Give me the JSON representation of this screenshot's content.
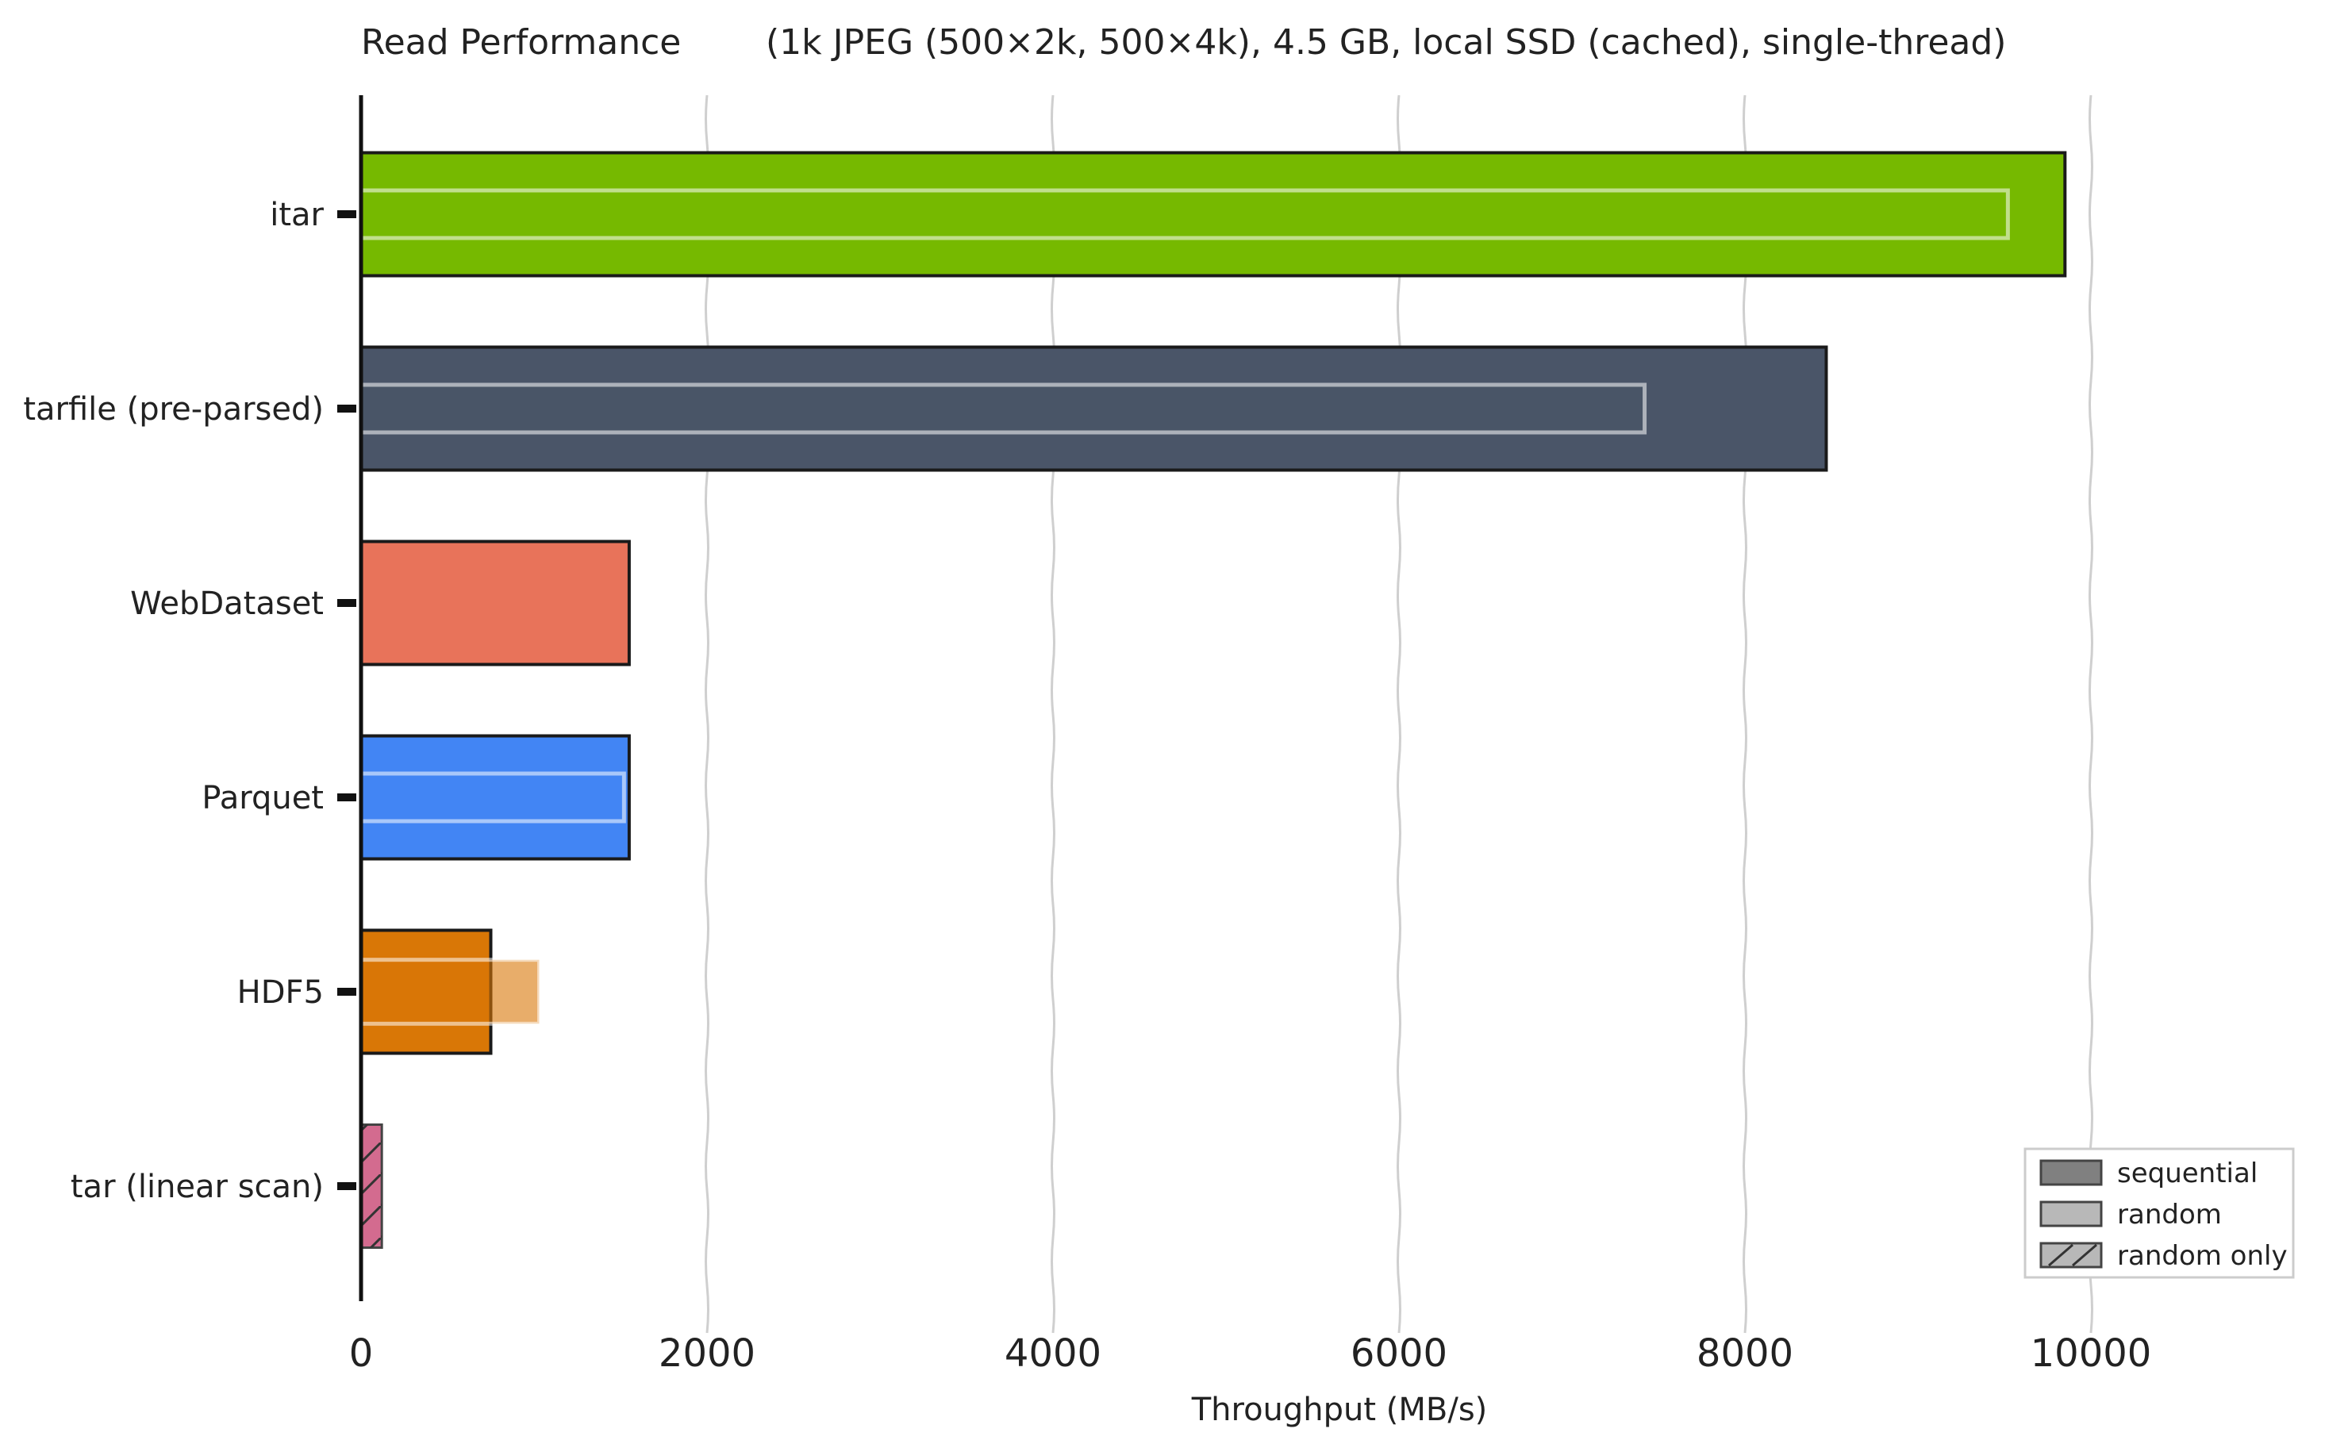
{
  "chart_data": {
    "type": "bar",
    "orientation": "horizontal",
    "title": "Read Performance",
    "subtitle": "(1k JPEG (500×2k, 500×4k), 4.5 GB, local SSD (cached), single-thread)",
    "xlabel": "Throughput (MB/s)",
    "ylabel": "",
    "xlim": [
      0,
      12000
    ],
    "x_ticks": [
      "0",
      "2000",
      "4000",
      "6000",
      "8000",
      "10000"
    ],
    "grid": "vertical",
    "legend_position": "bottom-right",
    "categories": [
      "itar",
      "tarfile (pre-parsed)",
      "WebDataset",
      "Parquet",
      "HDF5",
      "tar (linear scan)"
    ],
    "colors": [
      "#76b900",
      "#4a5568",
      "#e8735a",
      "#4285f4",
      "#d97706",
      "#d36b8f"
    ],
    "series": [
      {
        "name": "sequential",
        "values": [
          9850,
          8470,
          1550,
          1550,
          750,
          null
        ]
      },
      {
        "name": "random",
        "values": [
          9520,
          7420,
          null,
          1520,
          1030,
          null
        ]
      },
      {
        "name": "random only",
        "values": [
          null,
          null,
          null,
          null,
          null,
          120
        ]
      }
    ],
    "legend": [
      {
        "label": "sequential",
        "fill": "#808080",
        "style": "solid"
      },
      {
        "label": "random",
        "fill": "#b8b8b8",
        "style": "light"
      },
      {
        "label": "random only",
        "fill": "#b8b8b8",
        "style": "hatched"
      }
    ]
  }
}
